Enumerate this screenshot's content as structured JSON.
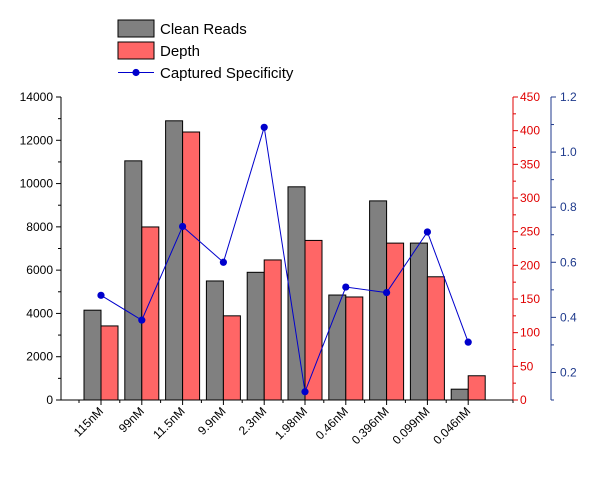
{
  "chart_data": {
    "type": "bar",
    "categories": [
      "115nM",
      "99nM",
      "11.5nM",
      "9.9nM",
      "2.3nM",
      "1.98nM",
      "0.46nM",
      "0.396nM",
      "0.099nM",
      "0.046nM"
    ],
    "series": [
      {
        "name": "Clean Reads",
        "type": "bar",
        "axis": "left",
        "color": "#808080",
        "values": [
          4150,
          11050,
          12900,
          5500,
          5900,
          9850,
          4850,
          9200,
          7250,
          500
        ]
      },
      {
        "name": "Depth",
        "type": "bar",
        "axis": "right1",
        "color": "#ff6666",
        "values": [
          110,
          257,
          398,
          125,
          208,
          237,
          153,
          233,
          183,
          36
        ]
      },
      {
        "name": "Captured Specificity",
        "type": "line",
        "axis": "right2",
        "color": "#0000cc",
        "values": [
          0.48,
          0.39,
          0.73,
          0.6,
          1.09,
          0.13,
          0.51,
          0.49,
          0.71,
          0.31
        ]
      }
    ],
    "axes": {
      "left": {
        "ylim": [
          0,
          14000
        ],
        "ticks": [
          "0",
          "2000",
          "4000",
          "6000",
          "8000",
          "10000",
          "12000",
          "14000"
        ],
        "color": "#000000"
      },
      "right1": {
        "ylim": [
          0,
          450
        ],
        "ticks": [
          "0",
          "50",
          "100",
          "150",
          "200",
          "250",
          "300",
          "350",
          "400",
          "450"
        ],
        "color": "#e00000"
      },
      "right2": {
        "ylim": [
          0.1,
          1.2
        ],
        "ticks": [
          "0.2",
          "0.4",
          "0.6",
          "0.8",
          "1.0",
          "1.2"
        ],
        "color": "#1f3a8c"
      }
    },
    "legend": {
      "placement": "top-left",
      "entries": [
        {
          "label": "Clean Reads",
          "kind": "bar",
          "color": "#808080"
        },
        {
          "label": "Depth",
          "kind": "bar",
          "color": "#ff6666"
        },
        {
          "label": "Captured Specificity",
          "kind": "line",
          "color": "#0000cc"
        }
      ]
    },
    "title": "",
    "xlabel": "",
    "ylabel": "",
    "grid": false
  }
}
